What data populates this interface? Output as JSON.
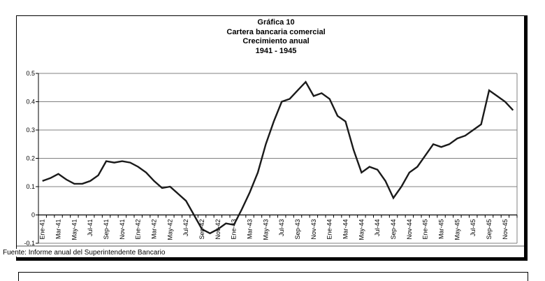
{
  "title": {
    "lines": [
      "Gráfica 10",
      "Cartera bancaria comercial",
      "Crecimiento anual",
      "1941 - 1945"
    ]
  },
  "source": "Fuente: Informe anual del Superintendente Bancario",
  "chart_data": {
    "type": "line",
    "title": "Gráfica 10 - Cartera bancaria comercial - Crecimiento anual - 1941 - 1945",
    "xlabel": "",
    "ylabel": "",
    "grid": true,
    "legend_position": "none",
    "line_color": "#1a1a1a",
    "grid_color": "#808080",
    "axis_color": "#000000",
    "ylim": [
      -0.1,
      0.5
    ],
    "y_ticks": [
      0.5,
      0.4,
      0.3,
      0.2,
      0.1,
      0,
      -0.1
    ],
    "y_tick_labels": [
      "0.5",
      "0.4",
      "0.3",
      "0.2",
      "0.1",
      "0",
      "-0.1"
    ],
    "x_tick_labels": [
      "Ene-41",
      "Mar-41",
      "May-41",
      "Jul-41",
      "Sep-41",
      "Nov-41",
      "Ene-42",
      "Mar-42",
      "May-42",
      "Jul-42",
      "Sep-42",
      "Nov-42",
      "Ene-43",
      "Mar-43",
      "May-43",
      "Jul-43",
      "Sep-43",
      "Nov-43",
      "Ene-44",
      "Mar-44",
      "May-44",
      "Jul-44",
      "Sep-44",
      "Nov-44",
      "Ene-45",
      "Mar-45",
      "May-45",
      "Jul-45",
      "Sep-45",
      "Nov-45"
    ],
    "months_per_tick_label": 2,
    "values_monthly": [
      0.12,
      0.13,
      0.145,
      0.125,
      0.11,
      0.11,
      0.12,
      0.14,
      0.19,
      0.185,
      0.19,
      0.185,
      0.17,
      0.15,
      0.12,
      0.095,
      0.1,
      0.075,
      0.05,
      0.0,
      -0.05,
      -0.065,
      -0.05,
      -0.03,
      -0.035,
      0.02,
      0.08,
      0.15,
      0.25,
      0.33,
      0.4,
      0.41,
      0.44,
      0.47,
      0.42,
      0.43,
      0.41,
      0.35,
      0.33,
      0.23,
      0.15,
      0.17,
      0.16,
      0.12,
      0.06,
      0.1,
      0.15,
      0.17,
      0.21,
      0.25,
      0.24,
      0.25,
      0.27,
      0.28,
      0.3,
      0.32,
      0.44,
      0.42,
      0.4,
      0.37
    ]
  }
}
